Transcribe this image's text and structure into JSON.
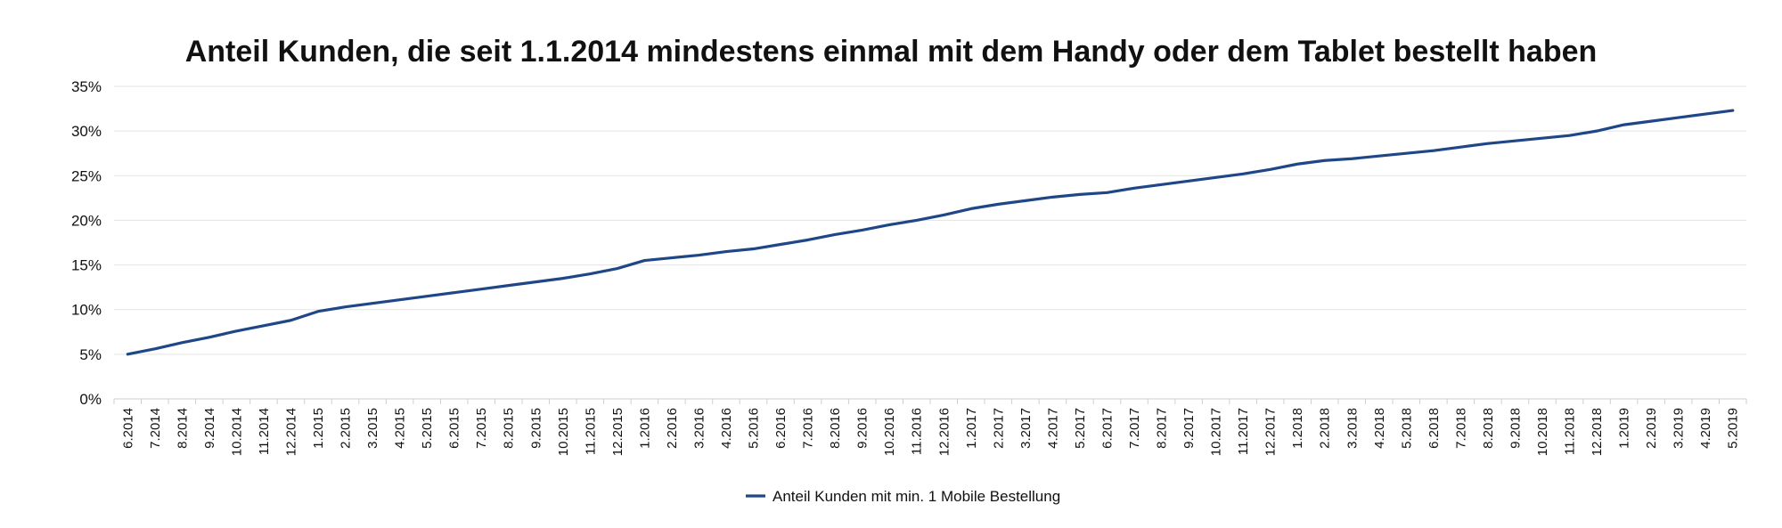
{
  "chart_data": {
    "type": "line",
    "title": "Anteil Kunden, die seit 1.1.2014 mindestens einmal mit dem Handy oder dem Tablet bestellt haben",
    "xlabel": "",
    "ylabel": "",
    "ylim": [
      0,
      35
    ],
    "y_ticks": [
      "0%",
      "5%",
      "10%",
      "15%",
      "20%",
      "25%",
      "30%",
      "35%"
    ],
    "grid": true,
    "legend_position": "bottom",
    "categories": [
      "6.2014",
      "7.2014",
      "8.2014",
      "9.2014",
      "10.2014",
      "11.2014",
      "12.2014",
      "1.2015",
      "2.2015",
      "3.2015",
      "4.2015",
      "5.2015",
      "6.2015",
      "7.2015",
      "8.2015",
      "9.2015",
      "10.2015",
      "11.2015",
      "12.2015",
      "1.2016",
      "2.2016",
      "3.2016",
      "4.2016",
      "5.2016",
      "6.2016",
      "7.2016",
      "8.2016",
      "9.2016",
      "10.2016",
      "11.2016",
      "12.2016",
      "1.2017",
      "2.2017",
      "3.2017",
      "4.2017",
      "5.2017",
      "6.2017",
      "7.2017",
      "8.2017",
      "9.2017",
      "10.2017",
      "11.2017",
      "12.2017",
      "1.2018",
      "2.2018",
      "3.2018",
      "4.2018",
      "5.2018",
      "6.2018",
      "7.2018",
      "8.2018",
      "9.2018",
      "10.2018",
      "11.2018",
      "12.2018",
      "1.2019",
      "2.2019",
      "3.2019",
      "4.2019",
      "5.2019"
    ],
    "series": [
      {
        "name": "Anteil Kunden mit min. 1 Mobile Bestellung",
        "color": "#1f4788",
        "values": [
          5.0,
          5.6,
          6.3,
          6.9,
          7.6,
          8.2,
          8.8,
          9.8,
          10.3,
          10.7,
          11.1,
          11.5,
          11.9,
          12.3,
          12.7,
          13.1,
          13.5,
          14.0,
          14.6,
          15.5,
          15.8,
          16.1,
          16.5,
          16.8,
          17.3,
          17.8,
          18.4,
          18.9,
          19.5,
          20.0,
          20.6,
          21.3,
          21.8,
          22.2,
          22.6,
          22.9,
          23.1,
          23.6,
          24.0,
          24.4,
          24.8,
          25.2,
          25.7,
          26.3,
          26.7,
          26.9,
          27.2,
          27.5,
          27.8,
          28.2,
          28.6,
          28.9,
          29.2,
          29.5,
          30.0,
          30.7,
          31.1,
          31.5,
          31.9,
          32.3
        ]
      }
    ]
  }
}
